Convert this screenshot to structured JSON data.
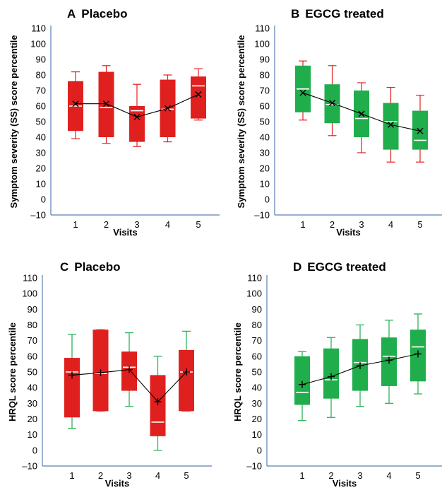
{
  "chart_data": [
    {
      "type": "box",
      "panel_letter": "A",
      "title": "Placebo",
      "xlabel": "Visits",
      "ylabel": "Symptom severity (SS) score percentile",
      "categories": [
        "1",
        "2",
        "3",
        "4",
        "5"
      ],
      "yticks": [
        "–10",
        "0",
        "10",
        "20",
        "30",
        "40",
        "50",
        "60",
        "70",
        "80",
        "90",
        "100",
        "110"
      ],
      "ylim": [
        -10,
        110
      ],
      "box_color": "#e0201e",
      "whisker_color": "#e0201e",
      "median_color": "#ffffff",
      "mean_marker": "x",
      "boxes": [
        {
          "whisker_low": 39,
          "q1": 44,
          "median": 60,
          "q3": 76,
          "whisker_high": 82,
          "mean": 61.5
        },
        {
          "whisker_low": 36,
          "q1": 40,
          "median": 59,
          "q3": 82,
          "whisker_high": 86,
          "mean": 61.5
        },
        {
          "whisker_low": 34,
          "q1": 37,
          "median": 57,
          "q3": 60,
          "whisker_high": 74,
          "mean": 53
        },
        {
          "whisker_low": 37,
          "q1": 40,
          "median": 58,
          "q3": 77,
          "whisker_high": 80,
          "mean": 58.5
        },
        {
          "whisker_low": 51,
          "q1": 52,
          "median": 73,
          "q3": 79,
          "whisker_high": 84,
          "mean": 67.5
        }
      ]
    },
    {
      "type": "box",
      "panel_letter": "B",
      "title": "EGCG treated",
      "xlabel": "Visits",
      "ylabel": "Symptom severity (SS) score percentile",
      "categories": [
        "1",
        "2",
        "3",
        "4",
        "5"
      ],
      "yticks": [
        "–10",
        "0",
        "10",
        "20",
        "30",
        "40",
        "50",
        "60",
        "70",
        "80",
        "90",
        "100",
        "110"
      ],
      "ylim": [
        -10,
        110
      ],
      "box_color": "#1fae4b",
      "whisker_color": "#e0201e",
      "median_color": "#ffffff",
      "mean_marker": "x",
      "boxes": [
        {
          "whisker_low": 51,
          "q1": 56,
          "median": 71,
          "q3": 86,
          "whisker_high": 89,
          "mean": 68.5
        },
        {
          "whisker_low": 41,
          "q1": 49,
          "median": 61,
          "q3": 74,
          "whisker_high": 86,
          "mean": 62
        },
        {
          "whisker_low": 30,
          "q1": 40,
          "median": 52,
          "q3": 70,
          "whisker_high": 75,
          "mean": 55
        },
        {
          "whisker_low": 24,
          "q1": 32,
          "median": 50,
          "q3": 62,
          "whisker_high": 72,
          "mean": 48
        },
        {
          "whisker_low": 24,
          "q1": 32,
          "median": 38,
          "q3": 57,
          "whisker_high": 67,
          "mean": 44
        }
      ]
    },
    {
      "type": "box",
      "panel_letter": "C",
      "title": "Placebo",
      "xlabel": "Visits",
      "ylabel": "HRQL score percentile",
      "categories": [
        "1",
        "2",
        "3",
        "4",
        "5"
      ],
      "yticks": [
        "–10",
        "0",
        "10",
        "20",
        "30",
        "40",
        "50",
        "60",
        "70",
        "80",
        "90",
        "100",
        "110"
      ],
      "ylim": [
        -10,
        110
      ],
      "box_color": "#e0201e",
      "whisker_color": "#1fae4b",
      "median_color": "#ffffff",
      "mean_marker": "+",
      "boxes": [
        {
          "whisker_low": 14,
          "q1": 21,
          "median": 50,
          "q3": 59,
          "whisker_high": 74,
          "mean": 48
        },
        {
          "whisker_low": 25,
          "q1": 25,
          "median": 49,
          "q3": 77,
          "whisker_high": 77,
          "mean": 49.5
        },
        {
          "whisker_low": 28,
          "q1": 38,
          "median": 53,
          "q3": 63,
          "whisker_high": 75,
          "mean": 51.5
        },
        {
          "whisker_low": 0,
          "q1": 9,
          "median": 18,
          "q3": 48,
          "whisker_high": 60,
          "mean": 31
        },
        {
          "whisker_low": 25,
          "q1": 25,
          "median": 50,
          "q3": 64,
          "whisker_high": 76,
          "mean": 50
        }
      ]
    },
    {
      "type": "box",
      "panel_letter": "D",
      "title": "EGCG treated",
      "xlabel": "Visits",
      "ylabel": "HRQL score percentile",
      "categories": [
        "1",
        "2",
        "3",
        "4",
        "5"
      ],
      "yticks": [
        "–10",
        "0",
        "10",
        "20",
        "30",
        "40",
        "50",
        "60",
        "70",
        "80",
        "90",
        "100",
        "110"
      ],
      "ylim": [
        -10,
        110
      ],
      "box_color": "#1fae4b",
      "whisker_color": "#1fae4b",
      "median_color": "#ffffff",
      "mean_marker": "+",
      "boxes": [
        {
          "whisker_low": 19,
          "q1": 29,
          "median": 37,
          "q3": 60,
          "whisker_high": 63,
          "mean": 42
        },
        {
          "whisker_low": 21,
          "q1": 33,
          "median": 45,
          "q3": 65,
          "whisker_high": 72,
          "mean": 47
        },
        {
          "whisker_low": 28,
          "q1": 38,
          "median": 56,
          "q3": 71,
          "whisker_high": 80,
          "mean": 54
        },
        {
          "whisker_low": 30,
          "q1": 41,
          "median": 60,
          "q3": 72,
          "whisker_high": 83,
          "mean": 57.5
        },
        {
          "whisker_low": 36,
          "q1": 44,
          "median": 66,
          "q3": 77,
          "whisker_high": 87,
          "mean": 61.5
        }
      ]
    }
  ]
}
